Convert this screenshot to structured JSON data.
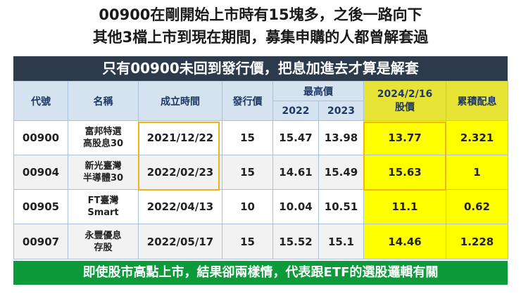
{
  "titles": {
    "line1": "00900在剛開始上市時有15塊多，之後一路向下",
    "line2": "其他3檔上市到現在期間，募集申購的人都曾解套過"
  },
  "banner_top": "只有00900未回到發行價，把息加進去才算是解套",
  "banner_bottom": "即使股市高點上市，結果卻兩樣情，代表跟ETF的選股邏輯有關",
  "table": {
    "headers": {
      "code": "代號",
      "name": "名稱",
      "established": "成立時間",
      "issue_price": "發行價",
      "high": "最高價",
      "year_2022": "2022",
      "year_2023": "2023",
      "price_date": "2024/2/16",
      "price_label": "股價",
      "dividend": "累積配息"
    },
    "rows": [
      {
        "code": "00900",
        "name1": "富邦特選",
        "name2": "高股息30",
        "established": "2021/12/22",
        "issue": "15",
        "h2022": "15.47",
        "h2023": "13.98",
        "price": "13.77",
        "dividend": "2.321"
      },
      {
        "code": "00904",
        "name1": "新光臺灣",
        "name2": "半導體30",
        "established": "2022/02/23",
        "issue": "15",
        "h2022": "14.61",
        "h2023": "15.49",
        "price": "15.63",
        "dividend": "1"
      },
      {
        "code": "00905",
        "name1": "FT臺灣",
        "name2": "Smart",
        "established": "2022/04/13",
        "issue": "10",
        "h2022": "10.04",
        "h2023": "10.51",
        "price": "11.1",
        "dividend": "0.62"
      },
      {
        "code": "00907",
        "name1": "永豐優息",
        "name2": "存股",
        "established": "2022/05/17",
        "issue": "15",
        "h2022": "15.52",
        "h2023": "15.1",
        "price": "14.46",
        "dividend": "1.228"
      }
    ]
  },
  "colors": {
    "banner_top": "#2c3a4c",
    "banner_bottom": "#0c9a3a",
    "highlight": "#ffff00",
    "frame": "#f3b21a"
  }
}
